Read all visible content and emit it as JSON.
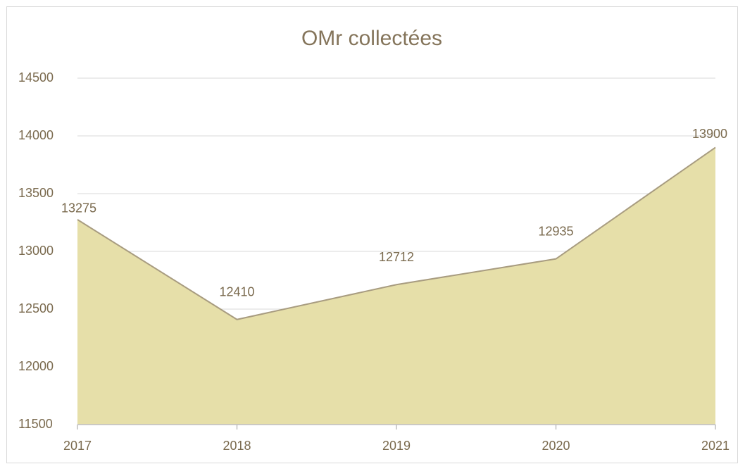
{
  "chart_data": {
    "type": "area",
    "title": "OMr collectées",
    "categories": [
      "2017",
      "2018",
      "2019",
      "2020",
      "2021"
    ],
    "values": [
      13275,
      12410,
      12712,
      12935,
      13900
    ],
    "color": "#e6dfa9",
    "line_color": "#a89c80",
    "ylim": [
      11500,
      14500
    ],
    "yticks": [
      11500,
      12000,
      12500,
      13000,
      13500,
      14000,
      14500
    ],
    "grid": true
  }
}
